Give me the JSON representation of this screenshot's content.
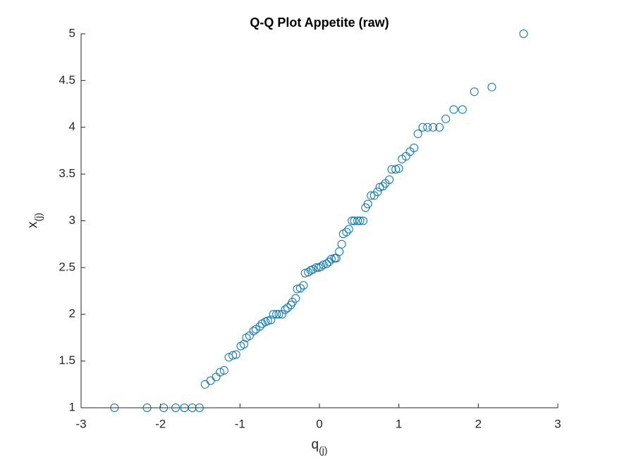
{
  "chart_data": {
    "type": "scatter",
    "title": "Q-Q Plot Appetite (raw)",
    "xlabel": {
      "base": "q",
      "subscript": "(j)"
    },
    "ylabel": {
      "base": "x",
      "subscript": "(j)"
    },
    "color": "#0072bd",
    "xlim": [
      -3,
      3
    ],
    "ylim": [
      1,
      5
    ],
    "xticks": [
      -3,
      -2,
      -1,
      0,
      1,
      2,
      3
    ],
    "yticks": [
      1,
      1.5,
      2,
      2.5,
      3,
      3.5,
      4,
      4.5,
      5
    ],
    "x": [
      -2.58,
      -2.17,
      -1.96,
      -1.81,
      -1.7,
      -1.6,
      -1.51,
      -1.44,
      -1.37,
      -1.3,
      -1.25,
      -1.2,
      -1.14,
      -1.09,
      -1.05,
      -0.99,
      -0.95,
      -0.92,
      -0.88,
      -0.83,
      -0.8,
      -0.75,
      -0.72,
      -0.68,
      -0.65,
      -0.61,
      -0.58,
      -0.54,
      -0.51,
      -0.47,
      -0.43,
      -0.4,
      -0.36,
      -0.34,
      -0.3,
      -0.28,
      -0.24,
      -0.2,
      -0.18,
      -0.14,
      -0.11,
      -0.08,
      -0.04,
      -0.01,
      0.02,
      0.05,
      0.09,
      0.12,
      0.15,
      0.19,
      0.21,
      0.25,
      0.28,
      0.3,
      0.34,
      0.37,
      0.41,
      0.44,
      0.48,
      0.51,
      0.55,
      0.58,
      0.61,
      0.65,
      0.69,
      0.73,
      0.76,
      0.8,
      0.83,
      0.88,
      0.91,
      0.96,
      1.0,
      1.04,
      1.09,
      1.14,
      1.19,
      1.24,
      1.3,
      1.36,
      1.43,
      1.51,
      1.59,
      1.69,
      1.8,
      1.95,
      2.17,
      2.57
    ],
    "values": [
      1,
      1,
      1,
      1,
      1,
      1,
      1,
      1.25,
      1.29,
      1.33,
      1.38,
      1.4,
      1.54,
      1.56,
      1.57,
      1.66,
      1.68,
      1.75,
      1.77,
      1.82,
      1.84,
      1.87,
      1.9,
      1.92,
      1.93,
      1.94,
      2.0,
      2.0,
      2.0,
      2.0,
      2.05,
      2.07,
      2.1,
      2.13,
      2.17,
      2.27,
      2.28,
      2.31,
      2.44,
      2.45,
      2.47,
      2.48,
      2.5,
      2.5,
      2.51,
      2.53,
      2.54,
      2.56,
      2.59,
      2.6,
      2.6,
      2.67,
      2.75,
      2.86,
      2.88,
      2.91,
      3.0,
      3.0,
      3.0,
      3.0,
      3.0,
      3.14,
      3.18,
      3.27,
      3.27,
      3.31,
      3.36,
      3.37,
      3.4,
      3.44,
      3.55,
      3.55,
      3.56,
      3.66,
      3.69,
      3.74,
      3.78,
      3.93,
      4.0,
      4.0,
      4.0,
      4.0,
      4.09,
      4.19,
      4.19,
      4.38,
      4.43,
      5.0
    ]
  }
}
